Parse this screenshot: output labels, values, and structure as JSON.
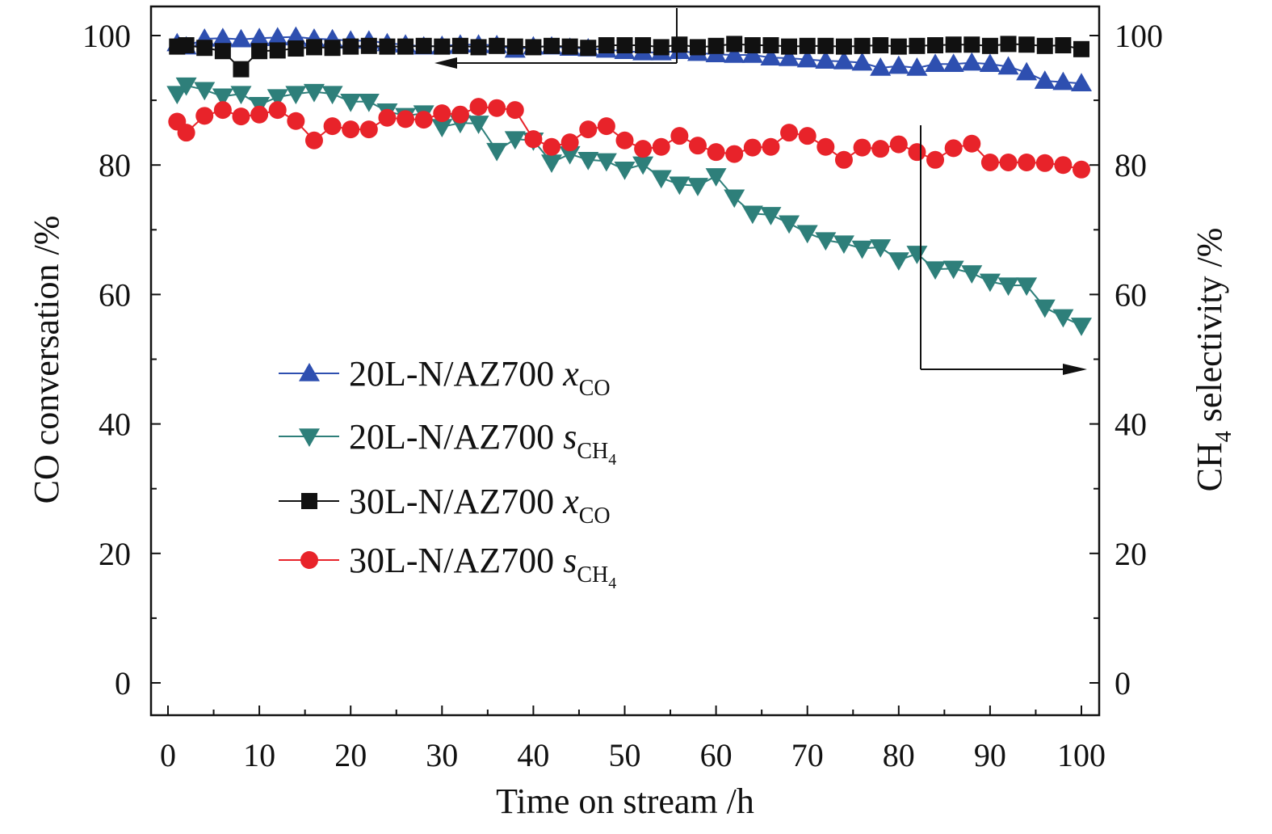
{
  "chart_data": {
    "type": "line",
    "xlabel": "Time on stream /h",
    "ylabel_left": "CO conversation /%",
    "ylabel_right": {
      "base": "CH",
      "subscript": "4",
      "rest": " selectivity /%"
    },
    "xlim": [
      0,
      100
    ],
    "ylim": [
      0,
      100
    ],
    "x_ticks": [
      "0",
      "10",
      "20",
      "30",
      "40",
      "50",
      "60",
      "70",
      "80",
      "90",
      "100"
    ],
    "y_ticks_left": [
      "0",
      "20",
      "40",
      "60",
      "80",
      "100"
    ],
    "y_ticks_right": [
      "0",
      "20",
      "40",
      "60",
      "80",
      "100"
    ],
    "legend_placement": "center-left",
    "grid": false,
    "series": [
      {
        "name": "20L-N/AZ700 xCO",
        "legend": {
          "prefix": "20L-N/AZ700 ",
          "var": "x",
          "sub": "CO",
          "sub2": ""
        },
        "marker": "triangle-up",
        "color": "#2e4fb0",
        "axis": "left",
        "x": [
          1,
          2,
          4,
          6,
          8,
          10,
          12,
          14,
          16,
          18,
          20,
          22,
          24,
          26,
          28,
          30,
          32,
          34,
          36,
          38,
          40,
          42,
          44,
          46,
          48,
          50,
          52,
          54,
          56,
          58,
          60,
          62,
          64,
          66,
          68,
          70,
          72,
          74,
          76,
          78,
          80,
          82,
          84,
          86,
          88,
          90,
          92,
          94,
          96,
          98,
          100
        ],
        "values": [
          98.8,
          98.3,
          99.5,
          99.6,
          99.4,
          99.6,
          99.7,
          99.8,
          99.5,
          99.4,
          99.2,
          99.2,
          98.8,
          98.6,
          98.3,
          98.4,
          98.6,
          98.6,
          98.5,
          97.8,
          98.3,
          98.3,
          98.1,
          98.0,
          97.8,
          97.6,
          97.4,
          97.4,
          97.6,
          97.3,
          97.1,
          97.0,
          97.0,
          96.6,
          96.5,
          96.3,
          96.1,
          96.0,
          95.8,
          95.0,
          95.3,
          95.0,
          95.6,
          95.6,
          95.8,
          95.6,
          95.2,
          94.3,
          93.0,
          92.8,
          92.6
        ]
      },
      {
        "name": "20L-N/AZ700 sCH4",
        "legend": {
          "prefix": "20L-N/AZ700 ",
          "var": "s",
          "sub": "CH",
          "sub2": "4"
        },
        "marker": "triangle-down",
        "color": "#2e7f7a",
        "axis": "right",
        "x": [
          1,
          2,
          4,
          6,
          8,
          10,
          12,
          14,
          16,
          18,
          20,
          22,
          24,
          26,
          28,
          30,
          32,
          34,
          36,
          38,
          40,
          42,
          44,
          46,
          48,
          50,
          52,
          54,
          56,
          58,
          60,
          62,
          64,
          66,
          68,
          70,
          72,
          74,
          76,
          78,
          80,
          82,
          84,
          86,
          88,
          90,
          92,
          94,
          96,
          98,
          100
        ],
        "values": [
          91.0,
          92.3,
          91.6,
          90.6,
          91.0,
          89.3,
          90.5,
          91.0,
          91.3,
          91.0,
          89.8,
          89.8,
          88.3,
          87.6,
          88.0,
          85.9,
          86.5,
          86.4,
          82.2,
          84.0,
          83.8,
          80.4,
          81.7,
          80.8,
          80.6,
          79.3,
          80.1,
          78.0,
          77.0,
          76.8,
          78.3,
          75.0,
          72.5,
          72.3,
          71.0,
          69.5,
          68.4,
          67.9,
          67.1,
          67.3,
          65.3,
          66.3,
          63.9,
          64.0,
          63.3,
          62.0,
          61.4,
          61.4,
          58.0,
          56.5,
          55.2
        ]
      },
      {
        "name": "30L-N/AZ700 xCO",
        "legend": {
          "prefix": "30L-N/AZ700 ",
          "var": "x",
          "sub": "CO",
          "sub2": ""
        },
        "marker": "square",
        "color": "#111111",
        "axis": "left",
        "x": [
          1,
          2,
          4,
          6,
          8,
          10,
          12,
          14,
          16,
          18,
          20,
          22,
          24,
          26,
          28,
          30,
          32,
          34,
          36,
          38,
          40,
          42,
          44,
          46,
          48,
          50,
          52,
          54,
          56,
          58,
          60,
          62,
          64,
          66,
          68,
          70,
          72,
          74,
          76,
          78,
          80,
          82,
          84,
          86,
          88,
          90,
          92,
          94,
          96,
          98,
          100
        ],
        "values": [
          98.3,
          98.5,
          98.1,
          97.6,
          94.8,
          97.6,
          97.7,
          98.0,
          98.2,
          98.1,
          98.3,
          98.4,
          98.3,
          98.3,
          98.4,
          98.3,
          98.4,
          98.2,
          98.4,
          98.3,
          98.2,
          98.4,
          98.3,
          98.1,
          98.5,
          98.5,
          98.5,
          98.2,
          98.6,
          98.2,
          98.4,
          98.7,
          98.5,
          98.5,
          98.3,
          98.4,
          98.4,
          98.3,
          98.4,
          98.5,
          98.3,
          98.4,
          98.5,
          98.6,
          98.6,
          98.4,
          98.7,
          98.6,
          98.4,
          98.5,
          97.9
        ]
      },
      {
        "name": "30L-N/AZ700 sCH4",
        "legend": {
          "prefix": "30L-N/AZ700 ",
          "var": "s",
          "sub": "CH",
          "sub2": "4"
        },
        "marker": "circle",
        "color": "#e8232a",
        "axis": "right",
        "x": [
          1,
          2,
          4,
          6,
          8,
          10,
          12,
          14,
          16,
          18,
          20,
          22,
          24,
          26,
          28,
          30,
          32,
          34,
          36,
          38,
          40,
          42,
          44,
          46,
          48,
          50,
          52,
          54,
          56,
          58,
          60,
          62,
          64,
          66,
          68,
          70,
          72,
          74,
          76,
          78,
          80,
          82,
          84,
          86,
          88,
          90,
          92,
          94,
          96,
          98,
          100
        ],
        "values": [
          86.7,
          85.0,
          87.6,
          88.5,
          87.5,
          87.8,
          88.5,
          86.8,
          83.8,
          86.0,
          85.5,
          85.5,
          87.3,
          87.1,
          87.0,
          88.0,
          87.8,
          89.0,
          88.8,
          88.5,
          84.0,
          82.8,
          83.5,
          85.5,
          86.0,
          83.8,
          82.5,
          82.8,
          84.5,
          83.0,
          82.0,
          81.7,
          82.7,
          82.8,
          85.0,
          84.5,
          82.8,
          80.8,
          82.7,
          82.5,
          83.2,
          82.0,
          80.8,
          82.6,
          83.3,
          80.4,
          80.4,
          80.4,
          80.3,
          80.0,
          79.3
        ]
      }
    ]
  }
}
